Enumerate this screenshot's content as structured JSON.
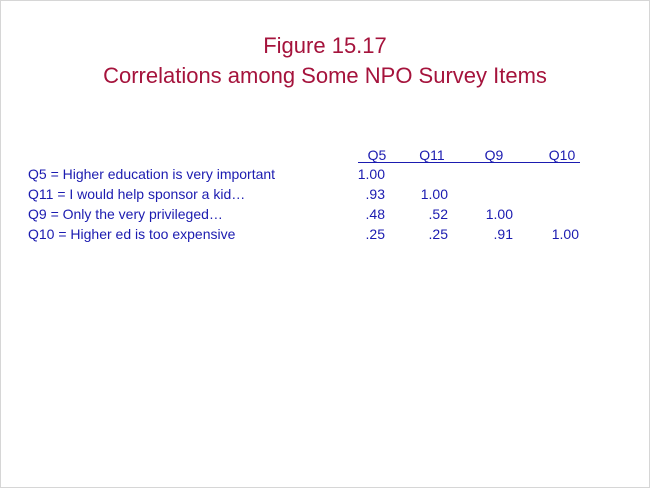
{
  "figure": {
    "title_line1": "Figure 15.17",
    "title_line2": "Correlations among  Some NPO Survey Items"
  },
  "columns": [
    "Q5",
    "Q11",
    "Q9",
    "Q10"
  ],
  "items": [
    {
      "label": "Q5 = Higher education is very important",
      "values": [
        "1.00"
      ]
    },
    {
      "label": "Q11 = I would help sponsor a kid…",
      "values": [
        ".93",
        "1.00"
      ]
    },
    {
      "label": "Q9 = Only the very privileged…",
      "values": [
        ".48",
        ".52",
        "1.00"
      ]
    },
    {
      "label": "Q10 = Higher  ed is too expensive",
      "values": [
        ".25",
        ".25",
        ".91",
        "1.00"
      ]
    }
  ],
  "colors": {
    "title": "#a5133c",
    "text": "#1b1bb0"
  }
}
